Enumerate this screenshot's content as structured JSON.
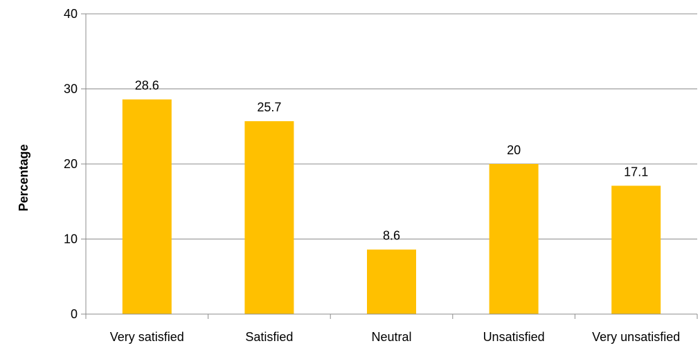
{
  "chart_data": {
    "type": "bar",
    "categories": [
      "Very satisfied",
      "Satisfied",
      "Neutral",
      "Unsatisfied",
      "Very unsatisfied"
    ],
    "values": [
      28.6,
      25.7,
      8.6,
      20,
      17.1
    ],
    "value_labels": [
      "28.6",
      "25.7",
      "8.6",
      "20",
      "17.1"
    ],
    "title": "",
    "xlabel": "",
    "ylabel": "Percentage",
    "ylim": [
      0,
      40
    ],
    "yticks": [
      0,
      10,
      20,
      30,
      40
    ],
    "ytick_labels": [
      "0",
      "10",
      "20",
      "30",
      "40"
    ],
    "grid": true,
    "bar_color": "#ffc000",
    "grid_color": "#8c8c8c"
  }
}
